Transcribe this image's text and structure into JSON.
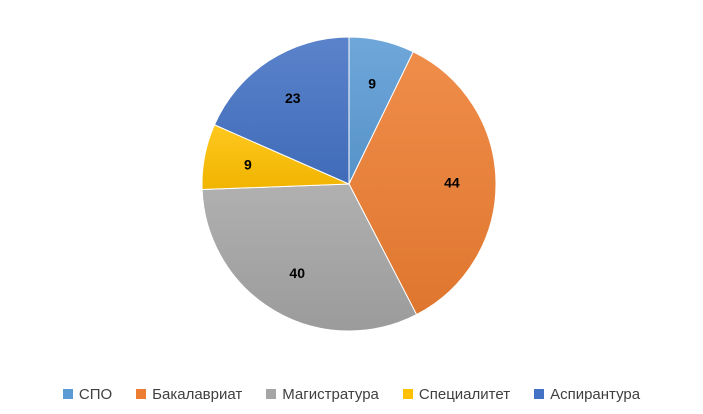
{
  "chart_data": {
    "type": "pie",
    "title": "",
    "categories": [
      "СПО",
      "Бакалавриат",
      "Магистратура",
      "Специалитет",
      "Аспирантура"
    ],
    "values": [
      9,
      44,
      40,
      9,
      23
    ],
    "colors": [
      "#5B9BD5",
      "#ED7D31",
      "#A5A5A5",
      "#FFC000",
      "#4472C4"
    ],
    "start_angle_deg": 0,
    "direction": "clockwise",
    "data_labels": true,
    "legend_placement": "bottom"
  }
}
